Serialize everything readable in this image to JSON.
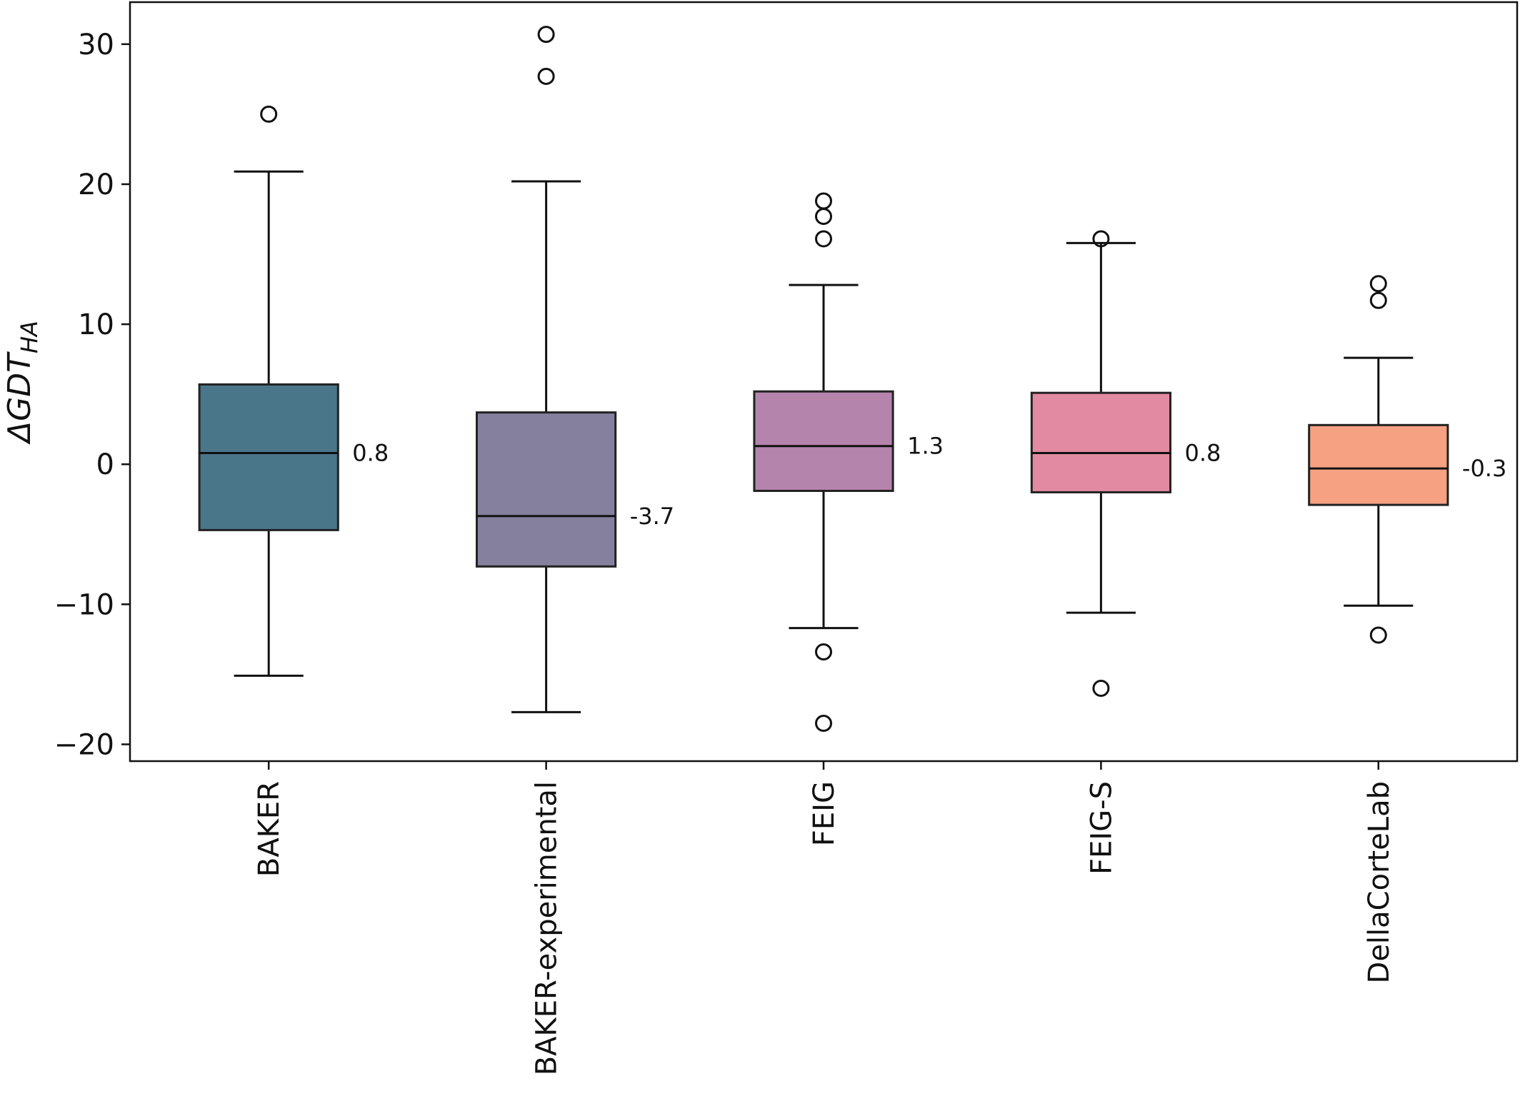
{
  "chart_data": {
    "type": "box",
    "ylabel": "ΔGDT",
    "ylabel_subscript": "HA",
    "ylim": [
      -21.2,
      33
    ],
    "yticks": [
      {
        "value": -20,
        "label": "−20"
      },
      {
        "value": -10,
        "label": "−10"
      },
      {
        "value": 0,
        "label": "0"
      },
      {
        "value": 10,
        "label": "10"
      },
      {
        "value": 20,
        "label": "20"
      },
      {
        "value": 30,
        "label": "30"
      }
    ],
    "grid": false,
    "categories": [
      "BAKER",
      "BAKER-experimental",
      "FEIG",
      "FEIG-S",
      "DellaCorteLab"
    ],
    "boxes": [
      {
        "name": "BAKER",
        "whisker_low": -15.1,
        "q1": -4.7,
        "median": 0.8,
        "q3": 5.7,
        "whisker_high": 20.9,
        "outliers": [
          25.0
        ],
        "median_label": "0.8",
        "color": "#4a7689"
      },
      {
        "name": "BAKER-experimental",
        "whisker_low": -17.7,
        "q1": -7.3,
        "median": -3.7,
        "q3": 3.7,
        "whisker_high": 20.2,
        "outliers": [
          27.7,
          30.7
        ],
        "median_label": "-3.7",
        "color": "#86809f"
      },
      {
        "name": "FEIG",
        "whisker_low": -11.7,
        "q1": -1.9,
        "median": 1.3,
        "q3": 5.2,
        "whisker_high": 12.8,
        "outliers": [
          16.1,
          17.7,
          18.8,
          -13.4,
          -18.5
        ],
        "median_label": "1.3",
        "color": "#b584ad"
      },
      {
        "name": "FEIG-S",
        "whisker_low": -10.6,
        "q1": -2.0,
        "median": 0.8,
        "q3": 5.1,
        "whisker_high": 15.8,
        "outliers": [
          16.1,
          -16.0
        ],
        "median_label": "0.8",
        "color": "#e28aa1"
      },
      {
        "name": "DellaCorteLab",
        "whisker_low": -10.1,
        "q1": -2.9,
        "median": -0.3,
        "q3": 2.8,
        "whisker_high": 7.6,
        "outliers": [
          11.7,
          12.9,
          -12.2
        ],
        "median_label": "-0.3",
        "color": "#f7a183"
      }
    ]
  }
}
